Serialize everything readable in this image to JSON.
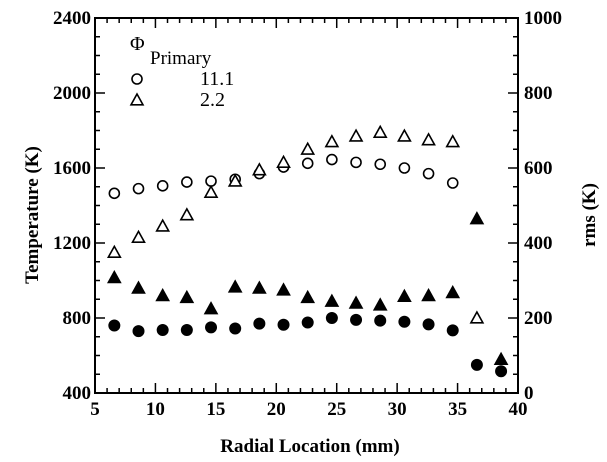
{
  "chart_data": {
    "type": "scatter",
    "title": "",
    "xlabel": "Radial Location (mm)",
    "ylabel": "Temperature (K)",
    "y2label": "rms (K)",
    "xlim": [
      5,
      40
    ],
    "ylim": [
      400,
      2400
    ],
    "y2lim": [
      0,
      1000
    ],
    "xticks": [
      "5",
      "10",
      "15",
      "20",
      "25",
      "30",
      "35",
      "40"
    ],
    "yticks": [
      "400",
      "800",
      "1200",
      "1600",
      "2000",
      "2400"
    ],
    "y2ticks": [
      "0",
      "200",
      "400",
      "600",
      "800",
      "1000"
    ],
    "grid": false,
    "legend": {
      "title_main": "Φ",
      "title_sub": "Primary",
      "placement": "top-left",
      "entries": [
        {
          "label": "11.1",
          "marker": "circle-open"
        },
        {
          "label": "2.2",
          "marker": "triangle-open"
        }
      ]
    },
    "series": [
      {
        "name": "11.1",
        "axis": "left",
        "marker": "circle-open",
        "x": [
          6.6,
          8.6,
          10.6,
          12.6,
          14.6,
          16.6,
          18.6,
          20.6,
          22.6,
          24.6,
          26.6,
          28.6,
          30.6,
          32.6,
          34.6
        ],
        "y": [
          1465,
          1490,
          1505,
          1525,
          1530,
          1540,
          1570,
          1605,
          1625,
          1645,
          1630,
          1620,
          1600,
          1570,
          1520
        ]
      },
      {
        "name": "2.2",
        "axis": "left",
        "marker": "triangle-open",
        "x": [
          6.6,
          8.6,
          10.6,
          12.6,
          14.6,
          16.6,
          18.6,
          20.6,
          22.6,
          24.6,
          26.6,
          28.6,
          30.6,
          32.6,
          34.6,
          36.6
        ],
        "y": [
          1150,
          1230,
          1290,
          1350,
          1470,
          1530,
          1590,
          1630,
          1700,
          1740,
          1770,
          1790,
          1770,
          1750,
          1740,
          800
        ]
      },
      {
        "axis": "right",
        "marker": "circle-filled",
        "x": [
          6.6,
          8.6,
          10.6,
          12.6,
          14.6,
          16.6,
          18.6,
          20.6,
          22.6,
          24.6,
          26.6,
          28.6,
          30.6,
          32.6,
          34.6,
          36.6,
          38.6
        ],
        "y": [
          180,
          165,
          168,
          168,
          175,
          172,
          185,
          182,
          188,
          200,
          195,
          193,
          190,
          183,
          167,
          75,
          58
        ]
      },
      {
        "axis": "right",
        "marker": "triangle-filled",
        "x": [
          6.6,
          8.6,
          10.6,
          12.6,
          14.6,
          16.6,
          18.6,
          20.6,
          22.6,
          24.6,
          26.6,
          28.6,
          30.6,
          32.6,
          34.6,
          36.6,
          38.6
        ],
        "y": [
          308,
          280,
          260,
          255,
          225,
          283,
          280,
          275,
          255,
          245,
          240,
          235,
          258,
          260,
          268,
          465,
          90
        ]
      }
    ]
  }
}
